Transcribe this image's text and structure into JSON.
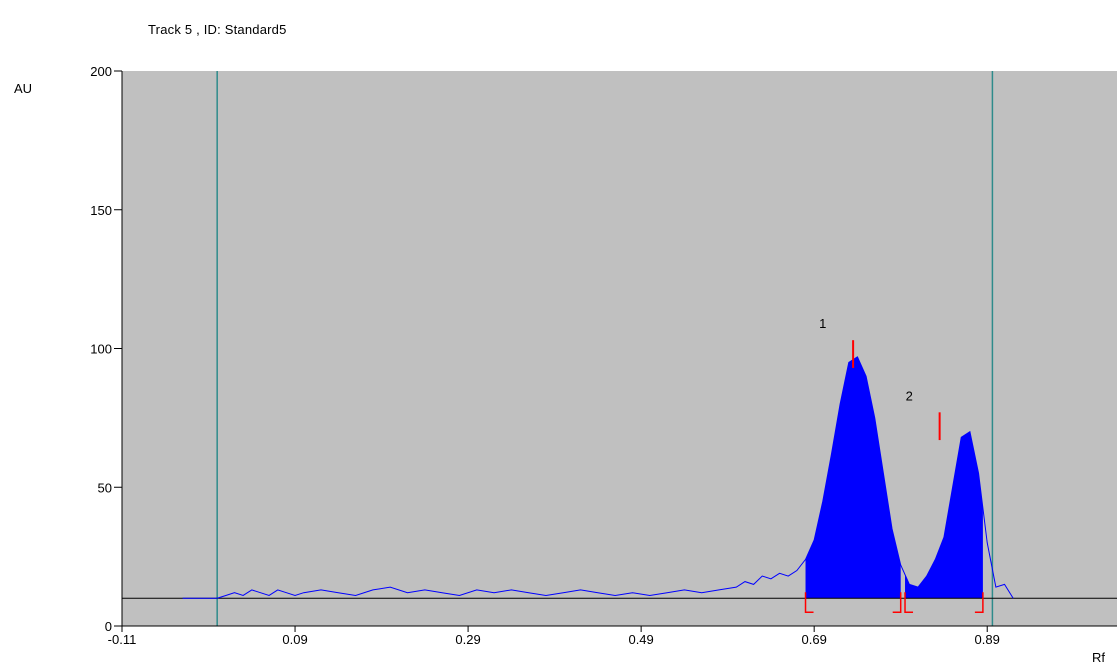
{
  "title": "Track  5 , ID: Standard5",
  "colors": {
    "plot_background": "#c0c0c0",
    "trace": "#0000ff",
    "peak_fill": "#0000ff",
    "baseline": "#000000",
    "boundary_lines": "#2e8b8b",
    "peak_markers": "#ff0000"
  },
  "chart_data": {
    "type": "line",
    "xlabel": "Rf",
    "ylabel": "AU",
    "xlim": [
      -0.11,
      1.04
    ],
    "ylim": [
      0,
      200
    ],
    "x_ticks": [
      -0.11,
      0.09,
      0.29,
      0.49,
      0.69,
      0.89
    ],
    "x_tick_labels": [
      "-0.11",
      "0.09",
      "0.29",
      "0.49",
      "0.69",
      "0.89"
    ],
    "y_ticks": [
      0,
      50,
      100,
      150,
      200
    ],
    "y_tick_labels": [
      "0",
      "50",
      "100",
      "150",
      "200"
    ],
    "grid": false,
    "baseline_y": 10,
    "boundary_lines_x": [
      0.0,
      0.896
    ],
    "series": [
      {
        "x": [
          -0.04,
          0.0,
          0.01,
          0.02,
          0.03,
          0.04,
          0.05,
          0.06,
          0.07,
          0.08,
          0.09,
          0.1,
          0.12,
          0.14,
          0.16,
          0.18,
          0.2,
          0.22,
          0.24,
          0.26,
          0.28,
          0.3,
          0.32,
          0.34,
          0.36,
          0.38,
          0.4,
          0.42,
          0.44,
          0.46,
          0.48,
          0.5,
          0.52,
          0.54,
          0.56,
          0.58,
          0.6,
          0.61,
          0.62,
          0.63,
          0.64,
          0.65,
          0.66,
          0.67,
          0.68,
          0.69,
          0.7,
          0.71,
          0.72,
          0.73,
          0.74,
          0.75,
          0.76,
          0.77,
          0.78,
          0.79,
          0.8,
          0.81,
          0.82,
          0.83,
          0.84,
          0.85,
          0.86,
          0.87,
          0.88,
          0.89,
          0.9,
          0.91,
          0.92
        ],
        "y": [
          10,
          10,
          11,
          12,
          11,
          13,
          12,
          11,
          13,
          12,
          11,
          12,
          13,
          12,
          11,
          13,
          14,
          12,
          13,
          12,
          11,
          13,
          12,
          13,
          12,
          11,
          12,
          13,
          12,
          11,
          12,
          11,
          12,
          13,
          12,
          13,
          14,
          16,
          15,
          18,
          17,
          19,
          18,
          20,
          24,
          31,
          45,
          62,
          80,
          95,
          97,
          90,
          75,
          55,
          35,
          22,
          15,
          14,
          18,
          24,
          32,
          50,
          68,
          70,
          55,
          30,
          14,
          15,
          10
        ]
      }
    ],
    "peaks": [
      {
        "label": "1",
        "x": 0.735,
        "y": 103,
        "start": 0.68,
        "end": 0.79
      },
      {
        "label": "2",
        "x": 0.835,
        "y": 77,
        "start": 0.795,
        "end": 0.885
      }
    ]
  }
}
